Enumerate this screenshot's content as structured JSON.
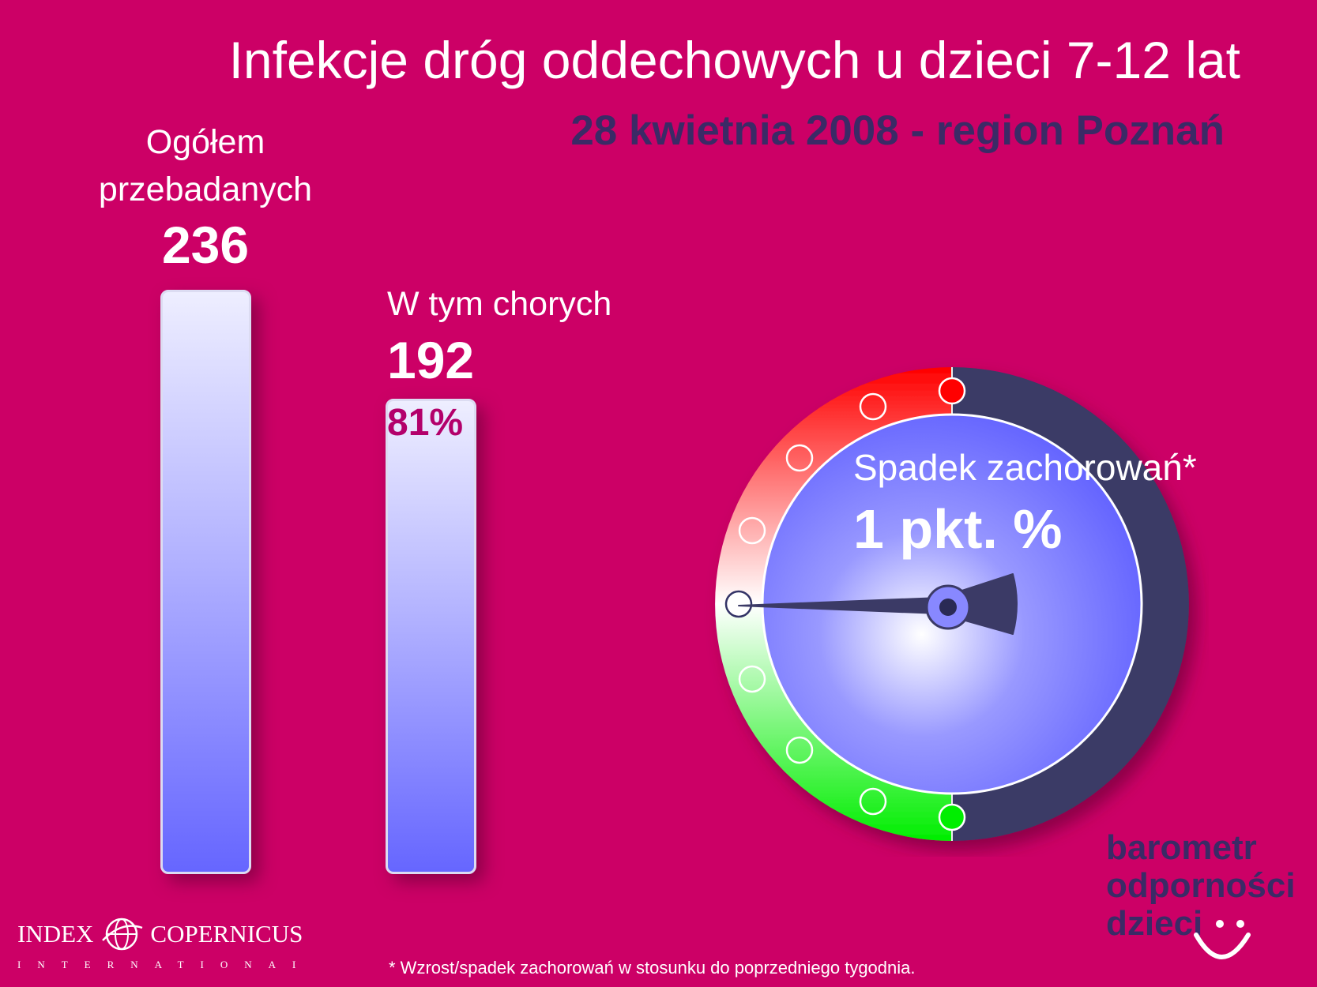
{
  "title": "Infekcje dróg oddechowych u dzieci 7-12 lat",
  "subtitle": "28 kwietnia 2008 - region Poznań",
  "chart_data": {
    "type": "bar",
    "categories": [
      "Ogółem przebadanych",
      "W tym chorych"
    ],
    "values": [
      236,
      192
    ],
    "bars": [
      {
        "label_lines": [
          "Ogółem",
          "przebadanych"
        ],
        "value_label": "236",
        "percent_label": ""
      },
      {
        "label_lines": [
          "W tym chorych"
        ],
        "value_label": "192",
        "percent_label": "81%"
      }
    ]
  },
  "gauge": {
    "label": "Spadek zachorowań*",
    "value_label": "1 pkt. %",
    "colors": {
      "top": "#ff0000",
      "middle": "#ffffff",
      "bottom": "#00ee00",
      "right": "#3b3a66",
      "face": "#7777ff"
    }
  },
  "branding": {
    "barometr_lines": [
      "barometr",
      "odporności",
      "dzieci"
    ],
    "logo_left": "INDEX",
    "logo_right": "COPERNICUS",
    "logo_sub": "INTERNATIONAL"
  },
  "footnote": "* Wzrost/spadek zachorowań w stosunku do poprzedniego tygodnia."
}
